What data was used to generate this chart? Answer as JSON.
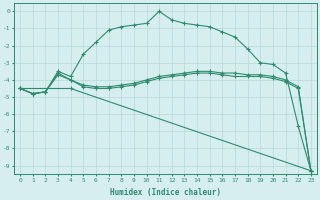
{
  "line1_x": [
    0,
    1,
    2,
    3,
    4,
    5,
    6,
    7,
    8,
    9,
    10,
    11,
    12,
    13,
    14,
    15,
    16,
    17,
    18,
    19,
    20,
    21,
    22,
    23
  ],
  "line1_y": [
    -4.5,
    -4.8,
    -4.7,
    -3.5,
    -3.8,
    -2.5,
    -1.8,
    -1.1,
    -0.9,
    -0.8,
    -0.7,
    0.0,
    -0.5,
    -0.7,
    -0.8,
    -0.9,
    -1.2,
    -1.5,
    -2.2,
    -3.0,
    -3.1,
    -3.6,
    -6.7,
    -9.3
  ],
  "line2_x": [
    0,
    1,
    2,
    3,
    4,
    5,
    6,
    7,
    8,
    9,
    10,
    11,
    12,
    13,
    14,
    15,
    16,
    17,
    18,
    19,
    20,
    21,
    22,
    23
  ],
  "line2_y": [
    -4.5,
    -4.8,
    -4.7,
    -3.6,
    -4.0,
    -4.3,
    -4.4,
    -4.4,
    -4.3,
    -4.2,
    -4.0,
    -3.8,
    -3.7,
    -3.6,
    -3.5,
    -3.5,
    -3.6,
    -3.6,
    -3.7,
    -3.7,
    -3.8,
    -4.0,
    -4.4,
    -9.3
  ],
  "line3_x": [
    0,
    1,
    2,
    3,
    4,
    5,
    6,
    7,
    8,
    9,
    10,
    11,
    12,
    13,
    14,
    15,
    16,
    17,
    18,
    19,
    20,
    21,
    22,
    23
  ],
  "line3_y": [
    -4.5,
    -4.8,
    -4.7,
    -3.7,
    -4.0,
    -4.4,
    -4.5,
    -4.5,
    -4.4,
    -4.3,
    -4.1,
    -3.9,
    -3.8,
    -3.7,
    -3.6,
    -3.6,
    -3.7,
    -3.8,
    -3.8,
    -3.8,
    -3.9,
    -4.1,
    -4.5,
    -9.3
  ],
  "line4_x": [
    0,
    4,
    23
  ],
  "line4_y": [
    -4.5,
    -4.5,
    -9.3
  ],
  "line_color": "#2e8b6e",
  "bg_color": "#d6eeee",
  "grid_color": "#b8d8d8",
  "xlabel": "Humidex (Indice chaleur)",
  "xlim": [
    -0.5,
    23.5
  ],
  "ylim": [
    -9.5,
    0.5
  ],
  "yticks": [
    0,
    -1,
    -2,
    -3,
    -4,
    -5,
    -6,
    -7,
    -8,
    -9
  ],
  "xticks": [
    0,
    1,
    2,
    3,
    4,
    5,
    6,
    7,
    8,
    9,
    10,
    11,
    12,
    13,
    14,
    15,
    16,
    17,
    18,
    19,
    20,
    21,
    22,
    23
  ]
}
